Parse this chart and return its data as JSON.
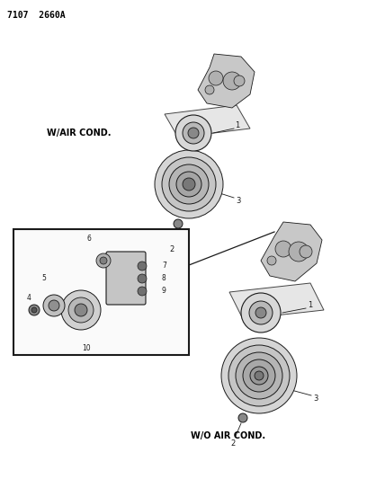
{
  "title_code": "7107  2660A",
  "background_color": "#ffffff",
  "text_color": "#000000",
  "lc": "#1a1a1a",
  "label_w_air_cond": "W/AIR COND.",
  "label_wo_air_cond": "W/O AIR COND.",
  "fig_w": 4.28,
  "fig_h": 5.33,
  "dpi": 100
}
